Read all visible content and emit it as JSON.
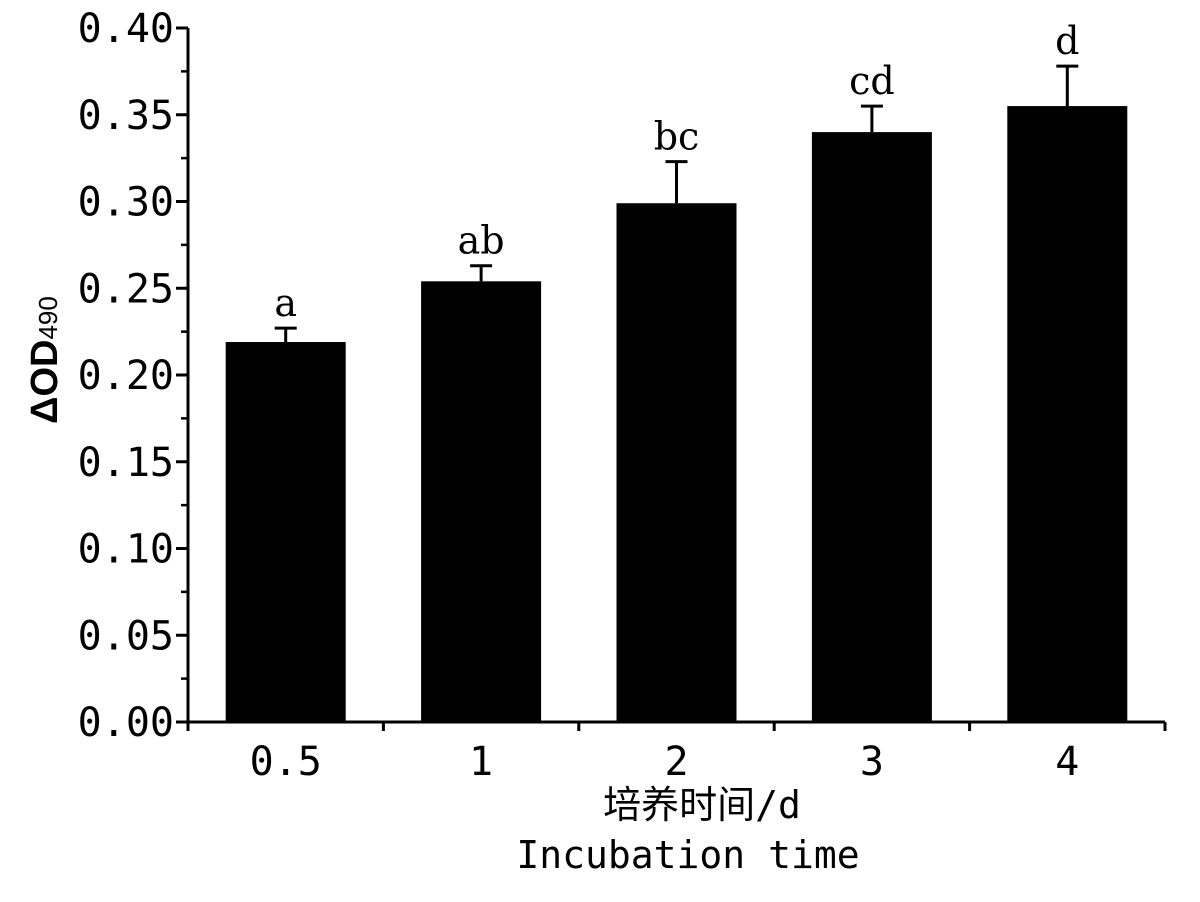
{
  "chart_data": {
    "type": "bar",
    "categories": [
      "0.5",
      "1",
      "2",
      "3",
      "4"
    ],
    "values": [
      0.219,
      0.254,
      0.299,
      0.34,
      0.355
    ],
    "error_upper": [
      0.008,
      0.009,
      0.024,
      0.015,
      0.023
    ],
    "significance_letters": [
      "a",
      "ab",
      "bc",
      "cd",
      "d"
    ],
    "ylabel": {
      "main": "ΔOD",
      "sub": "490"
    },
    "xlabel_lines": [
      "培养时间/d",
      "Incubation time"
    ],
    "ylim": [
      0,
      0.4
    ],
    "yticks": [
      "0.00",
      "0.05",
      "0.10",
      "0.15",
      "0.20",
      "0.25",
      "0.30",
      "0.35",
      "0.40"
    ],
    "ytick_values": [
      0,
      0.05,
      0.1,
      0.15,
      0.2,
      0.25,
      0.3,
      0.35,
      0.4
    ],
    "bar_color": "#000000",
    "grid": false,
    "legend": "none"
  }
}
